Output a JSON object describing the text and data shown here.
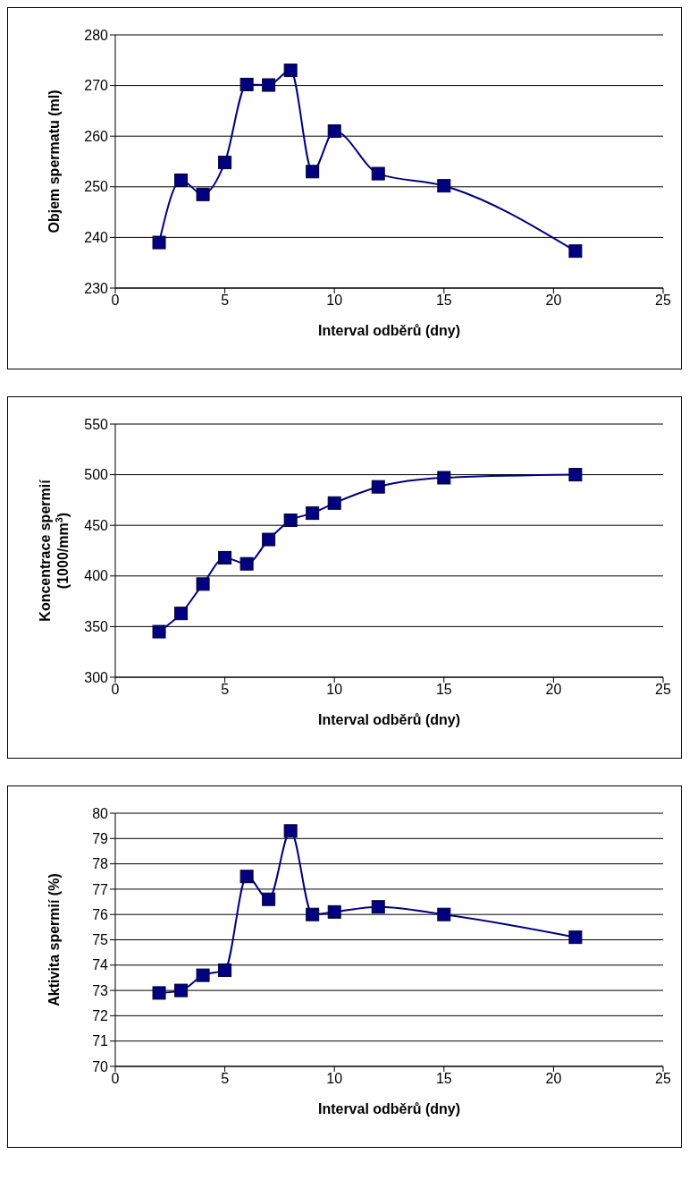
{
  "chart_data": [
    {
      "type": "line",
      "xlabel": "Interval odběrů (dny)",
      "ylabel": "Objem spermatu (ml)",
      "x": [
        2,
        3,
        4,
        5,
        6,
        7,
        8,
        9,
        10,
        12,
        15,
        21
      ],
      "series": [
        {
          "color": "#000080",
          "values": [
            239,
            251.3,
            248.5,
            254.8,
            270.2,
            270.1,
            273,
            253,
            261,
            252.6,
            250.2,
            237.3
          ]
        }
      ],
      "xlim": [
        0,
        25
      ],
      "xticks": [
        0,
        5,
        10,
        15,
        20,
        25
      ],
      "ylim": [
        230,
        280
      ],
      "yticks": [
        230,
        240,
        250,
        260,
        270,
        280
      ],
      "grid": "y",
      "marker": "square",
      "line_style": "solid"
    },
    {
      "type": "line",
      "xlabel": "Interval odběrů (dny)",
      "ylabel": "Koncentrace spermií (1000/mm$^{3}$)",
      "x": [
        2,
        3,
        4,
        5,
        6,
        7,
        8,
        9,
        10,
        12,
        15,
        21
      ],
      "series": [
        {
          "color": "#000080",
          "values": [
            345,
            363,
            392,
            418,
            412,
            436,
            455,
            462,
            472,
            488,
            497,
            500
          ]
        }
      ],
      "xlim": [
        0,
        25
      ],
      "xticks": [
        0,
        5,
        10,
        15,
        20,
        25
      ],
      "ylim": [
        300,
        550
      ],
      "yticks": [
        300,
        350,
        400,
        450,
        500,
        550
      ],
      "grid": "y",
      "marker": "square",
      "line_style": "solid"
    },
    {
      "type": "line",
      "xlabel": "Interval odběrů (dny)",
      "ylabel": "Aktivita spermií (%)",
      "x": [
        2,
        3,
        4,
        5,
        6,
        7,
        8,
        9,
        10,
        12,
        15,
        21
      ],
      "series": [
        {
          "color": "#000080",
          "values": [
            72.9,
            73.0,
            73.6,
            73.8,
            77.5,
            76.6,
            79.3,
            76.0,
            76.1,
            76.3,
            76.0,
            75.1
          ]
        }
      ],
      "xlim": [
        0,
        25
      ],
      "xticks": [
        0,
        5,
        10,
        15,
        20,
        25
      ],
      "ylim": [
        70,
        80
      ],
      "yticks": [
        70,
        71,
        72,
        73,
        74,
        75,
        76,
        77,
        78,
        79,
        80
      ],
      "grid": "y",
      "marker": "square",
      "line_style": "solid"
    }
  ]
}
